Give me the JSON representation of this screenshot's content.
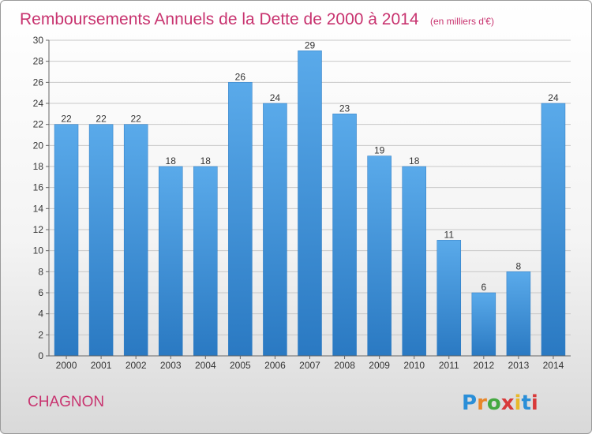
{
  "chart_data": {
    "type": "bar",
    "title": "Remboursements Annuels de la Dette de 2000 à 2014",
    "unit_note": "(en milliers d'€)",
    "categories": [
      "2000",
      "2001",
      "2002",
      "2003",
      "2004",
      "2005",
      "2006",
      "2007",
      "2008",
      "2009",
      "2010",
      "2011",
      "2012",
      "2013",
      "2014"
    ],
    "values": [
      22,
      22,
      22,
      18,
      18,
      26,
      24,
      29,
      23,
      19,
      18,
      11,
      6,
      8,
      24
    ],
    "ylim": [
      0,
      30
    ],
    "yticks": [
      0,
      2,
      4,
      6,
      8,
      10,
      12,
      14,
      16,
      18,
      20,
      22,
      24,
      26,
      28,
      30
    ],
    "grid": true,
    "bar_color": "#4a9de0",
    "bar_color_dark": "#2a79c2"
  },
  "footer": {
    "commune": "CHAGNON",
    "brand_letters": [
      "P",
      "r",
      "o",
      "x",
      "i",
      "t",
      "i"
    ],
    "brand_colors": [
      "#2b8fd8",
      "#e8862a",
      "#44a840",
      "#d83a3a",
      "#e8b82a",
      "#2b8fd8",
      "#d83a3a"
    ]
  }
}
